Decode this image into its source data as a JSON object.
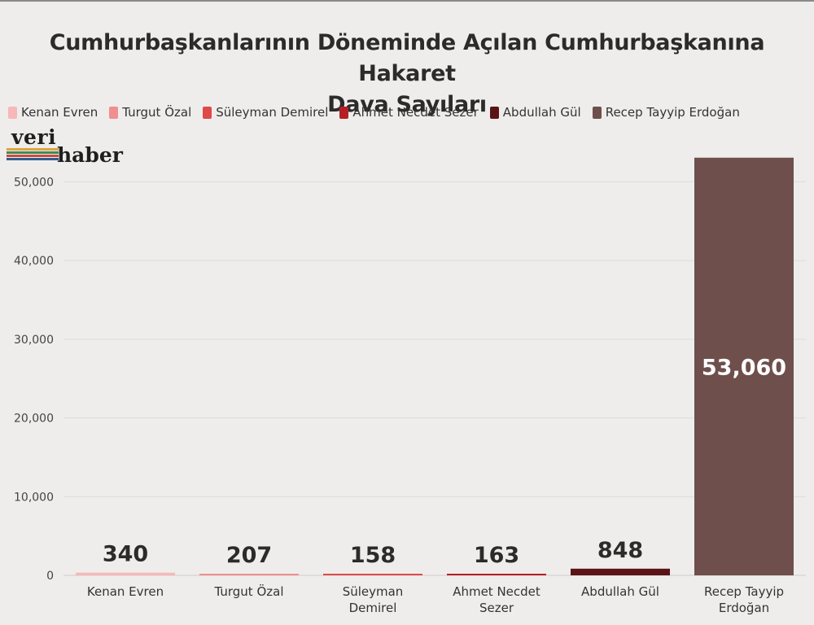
{
  "chart_data": {
    "type": "bar",
    "title": "Cumhurbaşkanlarının Döneminde Açılan Cumhurbaşkanına Hakaret Dava Sayıları",
    "title_lines": [
      "Cumhurbaşkanlarının Döneminde Açılan Cumhurbaşkanına Hakaret",
      "Dava Sayıları"
    ],
    "categories": [
      "Kenan Evren",
      "Turgut Özal",
      "Süleyman Demirel",
      "Ahmet Necdet Sezer",
      "Abdullah Gül",
      "Recep Tayyip Erdoğan"
    ],
    "category_lines": [
      [
        "Kenan Evren"
      ],
      [
        "Turgut Özal"
      ],
      [
        "Süleyman",
        "Demirel"
      ],
      [
        "Ahmet Necdet",
        "Sezer"
      ],
      [
        "Abdullah Gül"
      ],
      [
        "Recep Tayyip",
        "Erdoğan"
      ]
    ],
    "values": [
      340,
      207,
      158,
      163,
      848,
      53060
    ],
    "value_labels": [
      "340",
      "207",
      "158",
      "163",
      "848",
      "53,060"
    ],
    "colors": [
      "#f6b8b8",
      "#ef8f8f",
      "#de4a4a",
      "#b51f24",
      "#5a1416",
      "#6e4f4c"
    ],
    "legend": [
      "Kenan Evren",
      "Turgut Özal",
      "Süleyman Demirel",
      "Ahmet Necdet Sezer",
      "Abdullah Gül",
      "Recep Tayyip Erdoğan"
    ],
    "legend_placement": "top-left",
    "xlabel": "",
    "ylabel": "",
    "ylim": [
      0,
      55000
    ],
    "yticks": [
      0,
      10000,
      20000,
      30000,
      40000,
      50000
    ],
    "ytick_labels": [
      "0",
      "10,000",
      "20,000",
      "30,000",
      "40,000",
      "50,000"
    ],
    "grid": true
  },
  "logo": {
    "word1": "veri",
    "word2": "haber",
    "stripe_colors": [
      "#e0a33a",
      "#3e8a5b",
      "#cf4a3a",
      "#2f5f8f"
    ]
  }
}
